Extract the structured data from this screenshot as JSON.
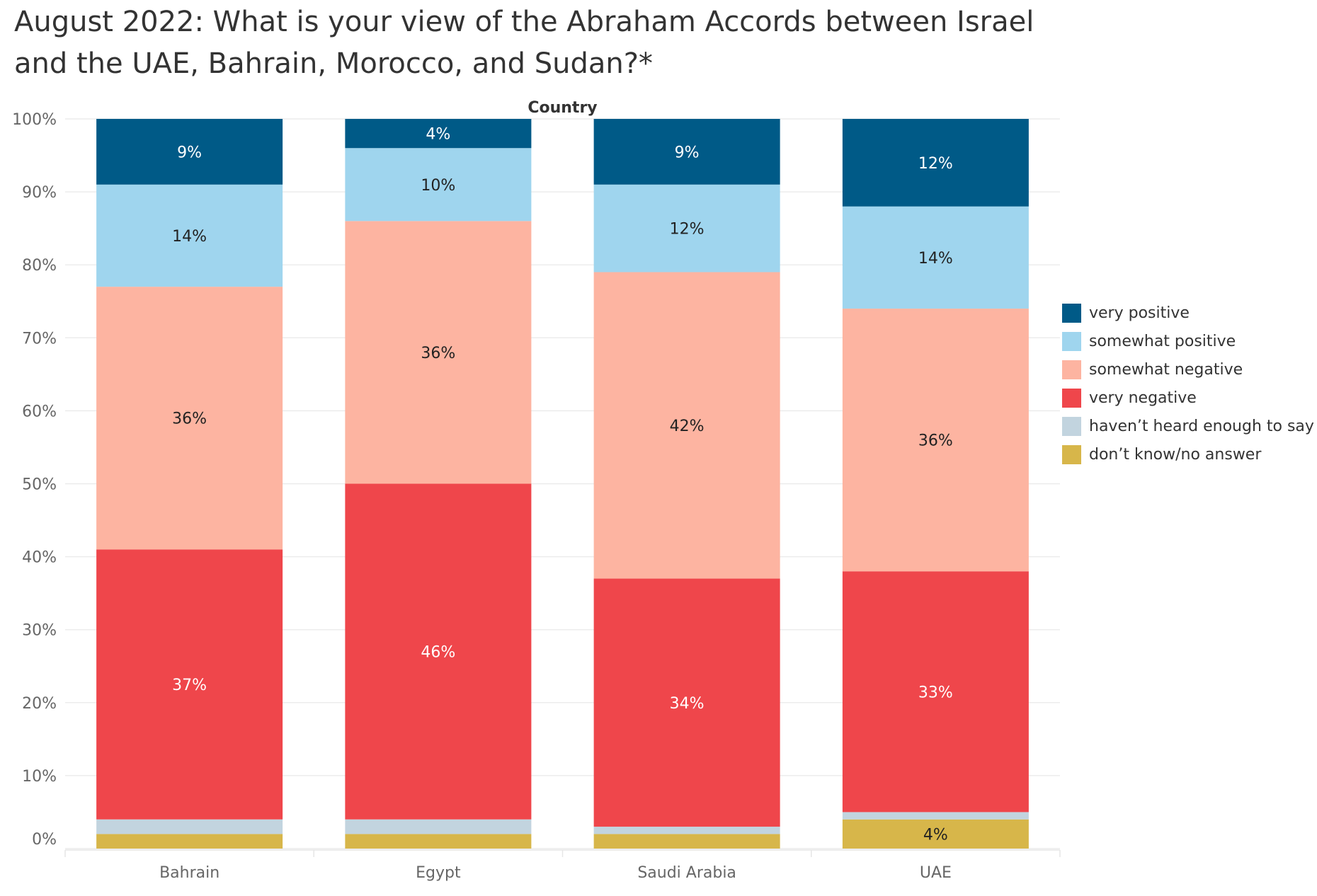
{
  "colors": {
    "very positive": "#005a87",
    "somewhat positive": "#9fd5ee",
    "somewhat negative": "#fdb4a1",
    "very negative": "#ef464b",
    "haven’t heard enough to say": "#c2d4df",
    "don’t know/no answer": "#d7b64a"
  },
  "chart_data": {
    "type": "bar",
    "stacked": true,
    "title": "August 2022: What is your view of the Abraham Accords between Israel and the UAE, Bahrain, Morocco, and Sudan?*",
    "column_header": "Country",
    "categories": [
      "Bahrain",
      "Egypt",
      "Saudi Arabia",
      "UAE"
    ],
    "series": [
      {
        "name": "don’t know/no answer",
        "values": [
          2,
          2,
          2,
          4
        ],
        "labels": [
          "",
          "",
          "",
          "4%"
        ]
      },
      {
        "name": "haven’t heard enough to say",
        "values": [
          2,
          2,
          1,
          1
        ],
        "labels": [
          "",
          "",
          "",
          ""
        ]
      },
      {
        "name": "very negative",
        "values": [
          37,
          46,
          34,
          33
        ],
        "labels": [
          "37%",
          "46%",
          "34%",
          "33%"
        ]
      },
      {
        "name": "somewhat negative",
        "values": [
          36,
          36,
          42,
          36
        ],
        "labels": [
          "36%",
          "36%",
          "42%",
          "36%"
        ]
      },
      {
        "name": "somewhat positive",
        "values": [
          14,
          10,
          12,
          14
        ],
        "labels": [
          "14%",
          "10%",
          "12%",
          "14%"
        ]
      },
      {
        "name": "very positive",
        "values": [
          9,
          4,
          9,
          12
        ],
        "labels": [
          "9%",
          "4%",
          "9%",
          "12%"
        ]
      }
    ],
    "legend_order": [
      "very positive",
      "somewhat positive",
      "somewhat negative",
      "very negative",
      "haven’t heard enough to say",
      "don’t know/no answer"
    ],
    "yticks": [
      "0%",
      "10%",
      "20%",
      "30%",
      "40%",
      "50%",
      "60%",
      "70%",
      "80%",
      "90%",
      "100%"
    ],
    "ylim": [
      0,
      100
    ],
    "grid": true,
    "legend_position": "right"
  }
}
